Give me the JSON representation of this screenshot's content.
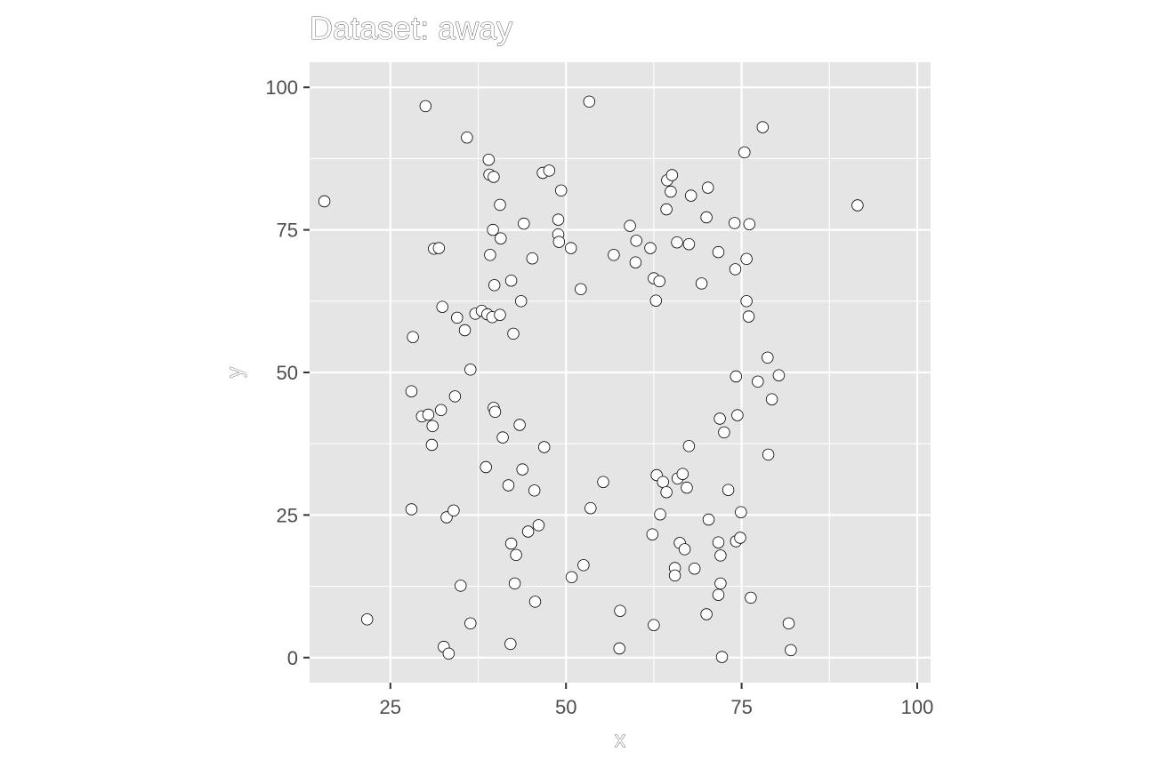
{
  "chart_data": {
    "type": "scatter",
    "title": "Dataset: away",
    "xlabel": "x",
    "ylabel": "y",
    "xlim": [
      13.5,
      101.9
    ],
    "ylim": [
      -4.4,
      104.4
    ],
    "x_ticks": [
      25,
      50,
      75,
      100
    ],
    "y_ticks": [
      0,
      25,
      50,
      75,
      100
    ],
    "x_tick_labels": [
      "25",
      "50",
      "75",
      "100"
    ],
    "y_tick_labels": [
      "0",
      "25",
      "50",
      "75",
      "100"
    ],
    "grid": true,
    "points": [
      [
        15.6,
        80.0
      ],
      [
        21.7,
        6.7
      ],
      [
        28.0,
        46.7
      ],
      [
        28.0,
        26.0
      ],
      [
        28.2,
        56.2
      ],
      [
        29.5,
        42.3
      ],
      [
        30.0,
        96.7
      ],
      [
        30.4,
        42.6
      ],
      [
        30.9,
        37.3
      ],
      [
        31.0,
        40.6
      ],
      [
        31.2,
        71.7
      ],
      [
        31.9,
        71.8
      ],
      [
        32.2,
        43.4
      ],
      [
        32.4,
        61.5
      ],
      [
        32.6,
        1.9
      ],
      [
        33.0,
        24.6
      ],
      [
        33.3,
        0.7
      ],
      [
        34.0,
        25.8
      ],
      [
        34.2,
        45.8
      ],
      [
        34.5,
        59.6
      ],
      [
        35.0,
        12.6
      ],
      [
        35.6,
        57.4
      ],
      [
        35.9,
        91.2
      ],
      [
        36.4,
        6.0
      ],
      [
        36.4,
        50.5
      ],
      [
        37.1,
        60.3
      ],
      [
        38.0,
        60.8
      ],
      [
        38.6,
        33.4
      ],
      [
        38.8,
        60.2
      ],
      [
        39.0,
        87.3
      ],
      [
        39.1,
        84.7
      ],
      [
        39.2,
        70.6
      ],
      [
        39.5,
        59.7
      ],
      [
        39.6,
        75.0
      ],
      [
        39.7,
        84.3
      ],
      [
        39.7,
        43.8
      ],
      [
        39.8,
        65.3
      ],
      [
        39.9,
        43.1
      ],
      [
        40.6,
        60.1
      ],
      [
        40.6,
        79.4
      ],
      [
        40.7,
        73.5
      ],
      [
        41.0,
        38.6
      ],
      [
        41.8,
        30.2
      ],
      [
        42.1,
        2.4
      ],
      [
        42.2,
        66.1
      ],
      [
        42.2,
        20.0
      ],
      [
        42.5,
        56.8
      ],
      [
        42.7,
        13.0
      ],
      [
        42.9,
        18.0
      ],
      [
        43.4,
        40.8
      ],
      [
        43.6,
        62.5
      ],
      [
        43.8,
        33.0
      ],
      [
        44.0,
        76.1
      ],
      [
        44.6,
        22.1
      ],
      [
        45.2,
        70.0
      ],
      [
        45.5,
        29.3
      ],
      [
        45.6,
        9.8
      ],
      [
        46.1,
        23.2
      ],
      [
        46.7,
        85.0
      ],
      [
        46.9,
        36.9
      ],
      [
        47.6,
        85.4
      ],
      [
        48.9,
        76.8
      ],
      [
        48.9,
        74.2
      ],
      [
        49.0,
        72.9
      ],
      [
        49.3,
        81.9
      ],
      [
        50.7,
        71.8
      ],
      [
        50.8,
        14.1
      ],
      [
        52.1,
        64.6
      ],
      [
        52.5,
        16.2
      ],
      [
        53.3,
        97.5
      ],
      [
        53.5,
        26.2
      ],
      [
        55.3,
        30.8
      ],
      [
        56.8,
        70.6
      ],
      [
        57.7,
        8.2
      ],
      [
        57.6,
        1.6
      ],
      [
        59.1,
        75.7
      ],
      [
        59.9,
        69.3
      ],
      [
        60.0,
        73.1
      ],
      [
        62.0,
        71.8
      ],
      [
        62.3,
        21.6
      ],
      [
        62.5,
        5.7
      ],
      [
        62.5,
        66.5
      ],
      [
        62.8,
        62.6
      ],
      [
        62.9,
        32.0
      ],
      [
        63.3,
        66.0
      ],
      [
        63.4,
        25.1
      ],
      [
        63.8,
        30.8
      ],
      [
        64.3,
        78.6
      ],
      [
        64.4,
        83.7
      ],
      [
        64.3,
        29.0
      ],
      [
        64.9,
        81.7
      ],
      [
        65.1,
        84.6
      ],
      [
        65.5,
        15.7
      ],
      [
        65.5,
        14.4
      ],
      [
        65.8,
        72.8
      ],
      [
        65.9,
        31.4
      ],
      [
        66.2,
        20.1
      ],
      [
        66.6,
        32.2
      ],
      [
        66.9,
        19.0
      ],
      [
        67.2,
        29.8
      ],
      [
        67.5,
        72.5
      ],
      [
        67.5,
        37.1
      ],
      [
        67.8,
        81.0
      ],
      [
        68.3,
        15.6
      ],
      [
        69.3,
        65.6
      ],
      [
        70.0,
        7.6
      ],
      [
        70.0,
        77.2
      ],
      [
        70.2,
        82.4
      ],
      [
        70.3,
        24.2
      ],
      [
        71.7,
        71.1
      ],
      [
        71.7,
        20.2
      ],
      [
        71.7,
        11.0
      ],
      [
        71.9,
        41.9
      ],
      [
        72.0,
        17.9
      ],
      [
        72.0,
        13.0
      ],
      [
        72.2,
        0.1
      ],
      [
        72.5,
        39.5
      ],
      [
        73.1,
        29.4
      ],
      [
        74.0,
        76.2
      ],
      [
        74.1,
        68.1
      ],
      [
        74.2,
        49.3
      ],
      [
        74.2,
        20.4
      ],
      [
        74.4,
        42.5
      ],
      [
        74.8,
        21.0
      ],
      [
        74.9,
        25.5
      ],
      [
        75.4,
        88.6
      ],
      [
        75.7,
        69.9
      ],
      [
        75.7,
        62.5
      ],
      [
        76.0,
        59.8
      ],
      [
        76.1,
        76.0
      ],
      [
        76.3,
        10.5
      ],
      [
        77.3,
        48.4
      ],
      [
        78.0,
        93.0
      ],
      [
        78.7,
        52.6
      ],
      [
        78.8,
        35.6
      ],
      [
        79.3,
        45.3
      ],
      [
        80.3,
        49.5
      ],
      [
        81.7,
        6.0
      ],
      [
        82.0,
        1.3
      ],
      [
        91.5,
        79.3
      ]
    ]
  }
}
